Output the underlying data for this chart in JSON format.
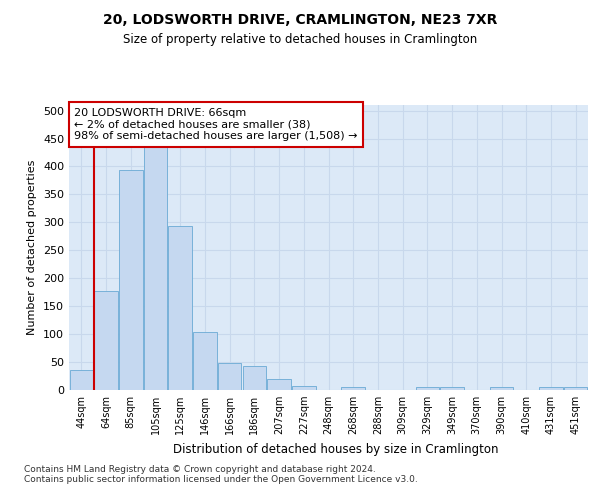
{
  "title": "20, LODSWORTH DRIVE, CRAMLINGTON, NE23 7XR",
  "subtitle": "Size of property relative to detached houses in Cramlington",
  "xlabel": "Distribution of detached houses by size in Cramlington",
  "ylabel": "Number of detached properties",
  "bar_color": "#c5d8f0",
  "bar_edge_color": "#6aaad4",
  "background_color": "#dce9f7",
  "categories": [
    "44sqm",
    "64sqm",
    "85sqm",
    "105sqm",
    "125sqm",
    "146sqm",
    "166sqm",
    "186sqm",
    "207sqm",
    "227sqm",
    "248sqm",
    "268sqm",
    "288sqm",
    "309sqm",
    "329sqm",
    "349sqm",
    "370sqm",
    "390sqm",
    "410sqm",
    "431sqm",
    "451sqm"
  ],
  "values": [
    35,
    178,
    393,
    455,
    293,
    103,
    48,
    43,
    20,
    8,
    0,
    5,
    0,
    0,
    5,
    5,
    0,
    5,
    0,
    5,
    5
  ],
  "vline_x": 0.5,
  "annotation_text": "20 LODSWORTH DRIVE: 66sqm\n← 2% of detached houses are smaller (38)\n98% of semi-detached houses are larger (1,508) →",
  "annotation_box_color": "#ffffff",
  "annotation_border_color": "#cc0000",
  "vline_color": "#cc0000",
  "footnote": "Contains HM Land Registry data © Crown copyright and database right 2024.\nContains public sector information licensed under the Open Government Licence v3.0.",
  "ylim": [
    0,
    510
  ],
  "yticks": [
    0,
    50,
    100,
    150,
    200,
    250,
    300,
    350,
    400,
    450,
    500
  ],
  "grid_color": "#c8d8ec"
}
